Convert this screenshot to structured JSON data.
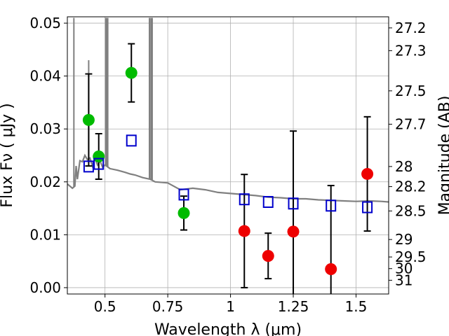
{
  "chart_data": {
    "type": "scatter",
    "xlabel": "Wavelength  λ (μm)",
    "ylabel": "Flux  Fν  ( μJy )",
    "ylabel_right": "Magnitude (AB)",
    "xlim": [
      0.35,
      1.63
    ],
    "ylim": [
      -0.0012,
      0.0512
    ],
    "grid": true,
    "colors": {
      "spectrum": "#808080",
      "green_points": "#00bb00",
      "red_points": "#ee0000",
      "model_squares": "#0000cc",
      "errorbars": "#000000"
    },
    "x_ticks": [
      {
        "value": 0.5,
        "label": "0.5"
      },
      {
        "value": 0.75,
        "label": "0.75"
      },
      {
        "value": 1.0,
        "label": "1"
      },
      {
        "value": 1.25,
        "label": "1.25"
      },
      {
        "value": 1.5,
        "label": "1.5"
      }
    ],
    "y_ticks": [
      {
        "value": 0.0,
        "label": "0.00"
      },
      {
        "value": 0.01,
        "label": "0.01"
      },
      {
        "value": 0.02,
        "label": "0.02"
      },
      {
        "value": 0.03,
        "label": "0.03"
      },
      {
        "value": 0.04,
        "label": "0.04"
      },
      {
        "value": 0.05,
        "label": "0.05"
      }
    ],
    "right_ticks": [
      {
        "flux": 0.0491,
        "label": "27.2"
      },
      {
        "flux": 0.0448,
        "label": "27.3"
      },
      {
        "flux": 0.0372,
        "label": "27.5"
      },
      {
        "flux": 0.0309,
        "label": "27.7"
      },
      {
        "flux": 0.0229,
        "label": "28"
      },
      {
        "flux": 0.0191,
        "label": "28.2"
      },
      {
        "flux": 0.0145,
        "label": "28.5"
      },
      {
        "flux": 0.0091,
        "label": "29"
      },
      {
        "flux": 0.0058,
        "label": "29.5"
      },
      {
        "flux": 0.0036,
        "label": "30"
      },
      {
        "flux": 0.0014,
        "label": "31"
      }
    ],
    "spectrum": {
      "x": [
        0.35,
        0.37,
        0.38,
        0.385,
        0.39,
        0.4,
        0.41,
        0.42,
        0.43,
        0.44,
        0.45,
        0.46,
        0.47,
        0.48,
        0.49,
        0.5,
        0.52,
        0.55,
        0.58,
        0.6,
        0.62,
        0.65,
        0.68,
        0.7,
        0.75,
        0.8,
        0.85,
        0.9,
        0.95,
        1.0,
        1.05,
        1.1,
        1.15,
        1.2,
        1.25,
        1.3,
        1.35,
        1.4,
        1.45,
        1.5,
        1.55,
        1.6,
        1.63
      ],
      "y": [
        0.0196,
        0.0188,
        0.0192,
        0.023,
        0.0205,
        0.024,
        0.0238,
        0.025,
        0.0242,
        0.0245,
        0.023,
        0.0245,
        0.0232,
        0.024,
        0.0228,
        0.0232,
        0.0225,
        0.0222,
        0.0218,
        0.0215,
        0.0213,
        0.0208,
        0.0205,
        0.02,
        0.0198,
        0.0185,
        0.0188,
        0.0185,
        0.018,
        0.0178,
        0.0176,
        0.0174,
        0.0171,
        0.017,
        0.0168,
        0.0168,
        0.0166,
        0.0165,
        0.0164,
        0.0163,
        0.0164,
        0.0163,
        0.0162
      ]
    },
    "emission_lines": [
      {
        "x": 0.376,
        "peak": 0.051
      },
      {
        "x": 0.435,
        "peak": 0.043
      },
      {
        "x": 0.503,
        "peak": 0.051
      },
      {
        "x": 0.507,
        "peak": 0.051
      },
      {
        "x": 0.511,
        "peak": 0.051
      },
      {
        "x": 0.677,
        "peak": 0.051
      },
      {
        "x": 0.683,
        "peak": 0.051
      },
      {
        "x": 0.688,
        "peak": 0.051
      }
    ],
    "series": [
      {
        "marker": "circle",
        "color": "#00bb00",
        "points": [
          {
            "x": 0.435,
            "y": 0.0317,
            "err": 0.0087
          },
          {
            "x": 0.475,
            "y": 0.0248,
            "err": 0.0043
          },
          {
            "x": 0.605,
            "y": 0.0406,
            "err": 0.0055
          },
          {
            "x": 0.814,
            "y": 0.0141,
            "err": 0.0032
          }
        ]
      },
      {
        "marker": "circle",
        "color": "#ee0000",
        "points": [
          {
            "x": 1.055,
            "y": 0.0107,
            "err": 0.0107
          },
          {
            "x": 1.15,
            "y": 0.006,
            "err": 0.0043
          },
          {
            "x": 1.25,
            "y": 0.0106,
            "err": 0.019
          },
          {
            "x": 1.4,
            "y": 0.0035,
            "err": 0.0158
          },
          {
            "x": 1.545,
            "y": 0.0215,
            "err": 0.0108
          }
        ]
      },
      {
        "marker": "square",
        "color": "#0000cc",
        "points": [
          {
            "x": 0.435,
            "y": 0.0229
          },
          {
            "x": 0.475,
            "y": 0.0234
          },
          {
            "x": 0.605,
            "y": 0.0278
          },
          {
            "x": 0.814,
            "y": 0.0176
          },
          {
            "x": 1.055,
            "y": 0.0167
          },
          {
            "x": 1.15,
            "y": 0.0162
          },
          {
            "x": 1.25,
            "y": 0.0159
          },
          {
            "x": 1.4,
            "y": 0.0155
          },
          {
            "x": 1.545,
            "y": 0.0152
          }
        ]
      }
    ]
  }
}
